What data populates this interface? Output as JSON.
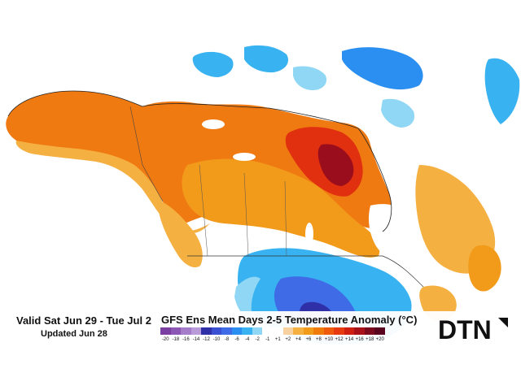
{
  "map": {
    "valid_text": "Valid Sat Jun 29 - Tue Jul 2",
    "updated_text": "Updated Jun 28",
    "title": "GFS Ens Mean Days 2-5 Temperature Anomaly (°C)",
    "brand": "DTN",
    "brand_color": "#111111",
    "ocean_color": "#ffffff",
    "land_neutral_color": "#ffffff"
  },
  "legend": {
    "ticks": [
      "-20",
      "-18",
      "-16",
      "-14",
      "-12",
      "-10",
      "-8",
      "-6",
      "-4",
      "-2",
      "-1",
      "+1",
      "+2",
      "+4",
      "+6",
      "+8",
      "+10",
      "+12",
      "+14",
      "+16",
      "+18",
      "+20"
    ],
    "colors": [
      "#7a3fa0",
      "#8d58b5",
      "#a47cc9",
      "#b89bd8",
      "#2f2fa8",
      "#3a4fd1",
      "#3f6be6",
      "#2a8ff0",
      "#38b2f0",
      "#8fd7f5",
      "#ffffff",
      "#ffffff",
      "#f7d1a0",
      "#f5b042",
      "#f29a1a",
      "#f17a0c",
      "#ef5a0c",
      "#e83a10",
      "#cf1f12",
      "#a8101a",
      "#7c0a1f",
      "#5a0520"
    ]
  }
}
